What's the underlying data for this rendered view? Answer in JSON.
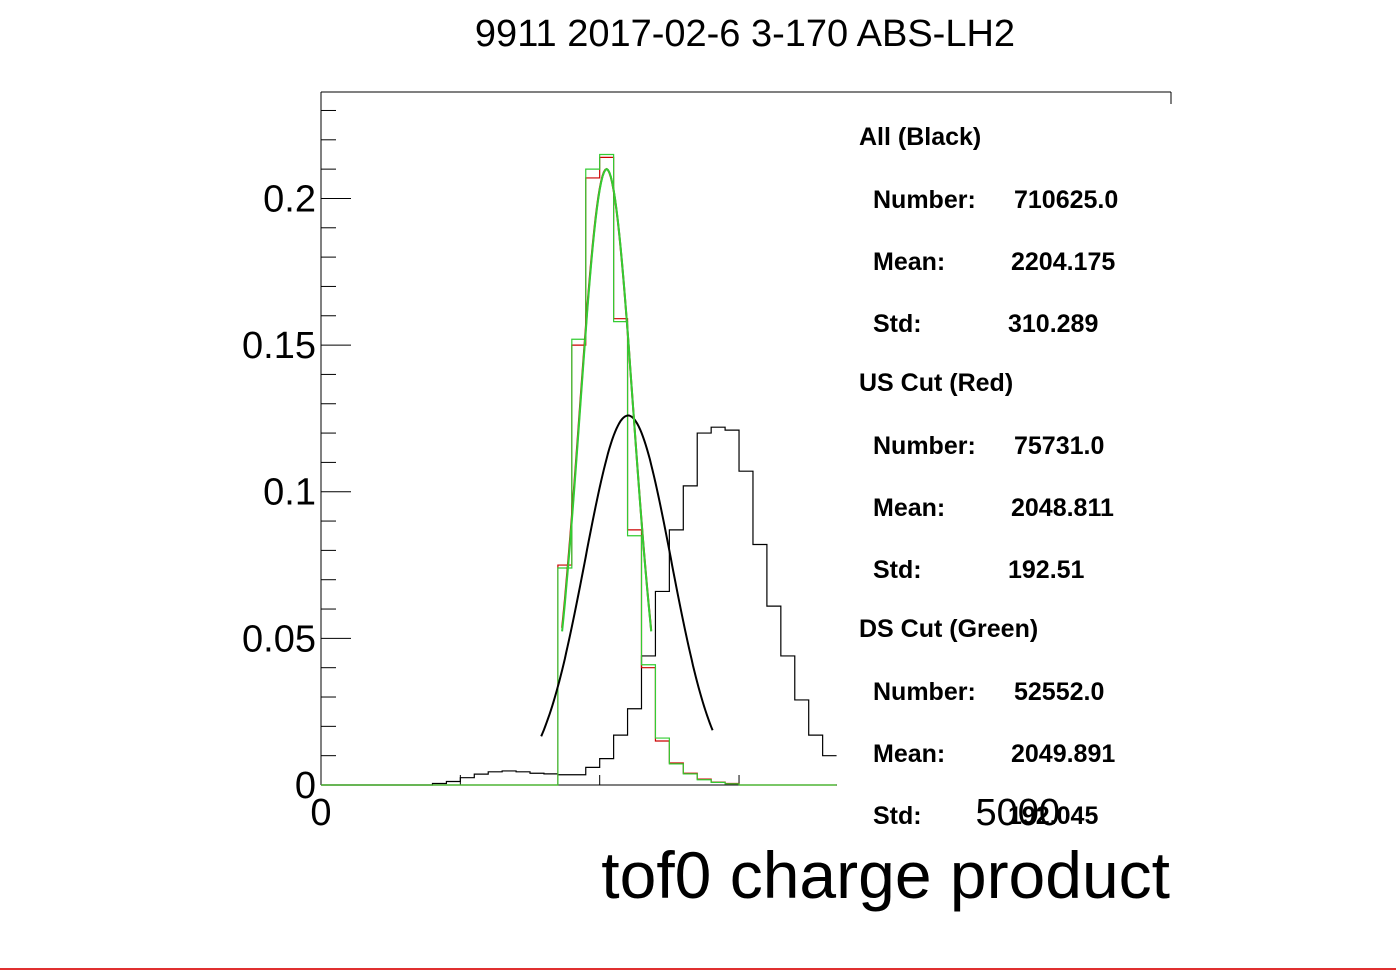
{
  "chart_data": {
    "type": "histogram",
    "title": "9911 2017-02-6 3-170 ABS-LH2",
    "xlabel": "tof0 charge product",
    "ylabel": "",
    "xlim": [
      0,
      6100
    ],
    "ylim": [
      0,
      0.2363
    ],
    "xticks": [
      {
        "value": 0,
        "label": "0"
      },
      {
        "value": 5000,
        "label": "5000"
      }
    ],
    "yticks": [
      {
        "value": 0,
        "label": "0"
      },
      {
        "value": 0.05,
        "label": "0.05"
      },
      {
        "value": 0.1,
        "label": "0.1"
      },
      {
        "value": 0.15,
        "label": "0.15"
      },
      {
        "value": 0.2,
        "label": "0.2"
      }
    ],
    "bin_width": 100,
    "series": [
      {
        "name": "All (Black)",
        "color": "#000000",
        "bin_edges_start": 0,
        "values": [
          0,
          0,
          0,
          0,
          0,
          0,
          0,
          0,
          0.0005,
          0.0012,
          0.0025,
          0.0037,
          0.0045,
          0.0048,
          0.0045,
          0.004,
          0.0038,
          0.0035,
          0.0035,
          0.006,
          0.009,
          0.017,
          0.026,
          0.044,
          0.066,
          0.087,
          0.102,
          0.12,
          0.122,
          0.121,
          0.107,
          0.082,
          0.061,
          0.044,
          0.029,
          0.017,
          0.01,
          0.005,
          0.0027,
          0.0015,
          0.001,
          0.0005,
          0.0003,
          0.0002,
          0.0001,
          0,
          0,
          0,
          0,
          0,
          0,
          0,
          0,
          0,
          0,
          0,
          0,
          0,
          0,
          0,
          0
        ],
        "fit": {
          "type": "gauss",
          "mean": 2204,
          "sigma": 310,
          "peak": 0.126,
          "range": [
            1580,
            2810
          ]
        }
      },
      {
        "name": "US Cut (Red)",
        "color": "#cc0000",
        "bin_edges_start": 0,
        "values": [
          0,
          0,
          0,
          0,
          0,
          0,
          0,
          0,
          0,
          0,
          0,
          0,
          0,
          0,
          0,
          0,
          0,
          0.075,
          0.15,
          0.207,
          0.214,
          0.159,
          0.087,
          0.04,
          0.015,
          0.0075,
          0.004,
          0.002,
          0.001,
          0.0005,
          0,
          0,
          0,
          0,
          0,
          0,
          0,
          0,
          0,
          0,
          0,
          0,
          0,
          0,
          0,
          0,
          0,
          0,
          0,
          0,
          0,
          0,
          0,
          0,
          0,
          0,
          0,
          0,
          0,
          0,
          0
        ],
        "fit": {
          "type": "gauss",
          "mean": 2049,
          "sigma": 193,
          "peak": 0.21,
          "range": [
            1730,
            2370
          ]
        }
      },
      {
        "name": "DS Cut (Green)",
        "color": "#33cc33",
        "bin_edges_start": 0,
        "values": [
          0,
          0,
          0,
          0,
          0,
          0,
          0,
          0,
          0,
          0,
          0,
          0,
          0,
          0,
          0,
          0,
          0,
          0.074,
          0.152,
          0.21,
          0.215,
          0.158,
          0.085,
          0.041,
          0.016,
          0.0072,
          0.0038,
          0.0018,
          0.0009,
          0.0004,
          0,
          0,
          0,
          0,
          0,
          0,
          0,
          0,
          0,
          0,
          0,
          0,
          0,
          0,
          0,
          0,
          0,
          0,
          0,
          0,
          0,
          0,
          0,
          0,
          0,
          0,
          0,
          0,
          0,
          0,
          0
        ],
        "fit": {
          "type": "gauss",
          "mean": 2050,
          "sigma": 192,
          "peak": 0.21,
          "range": [
            1730,
            2370
          ]
        }
      }
    ]
  },
  "stats": [
    {
      "heading": "All (Black)",
      "rows": [
        {
          "label": "Number:",
          "value": "710625.0"
        },
        {
          "label": "Mean:",
          "value": "2204.175"
        },
        {
          "label": "Std:",
          "value": "310.289"
        }
      ]
    },
    {
      "heading": "US Cut (Red)",
      "rows": [
        {
          "label": "Number:",
          "value": "75731.0"
        },
        {
          "label": "Mean:",
          "value": "2048.811"
        },
        {
          "label": "Std:",
          "value": "192.51"
        }
      ]
    },
    {
      "heading": "DS Cut (Green)",
      "rows": [
        {
          "label": "Number:",
          "value": "52552.0"
        },
        {
          "label": "Mean:",
          "value": "2049.891"
        },
        {
          "label": "Std:",
          "value": "192.045"
        }
      ]
    }
  ],
  "colors": {
    "frame": "#000000",
    "bottom_rule": "#e03030",
    "background": "#ffffff"
  }
}
